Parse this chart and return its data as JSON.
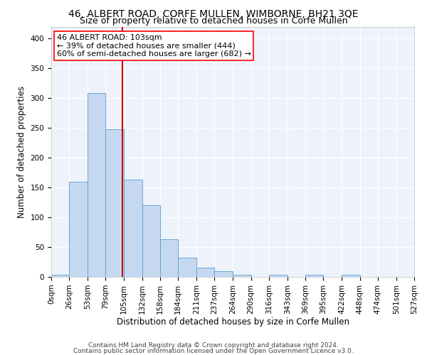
{
  "title": "46, ALBERT ROAD, CORFE MULLEN, WIMBORNE, BH21 3QE",
  "subtitle": "Size of property relative to detached houses in Corfe Mullen",
  "xlabel": "Distribution of detached houses by size in Corfe Mullen",
  "ylabel": "Number of detached properties",
  "footnote1": "Contains HM Land Registry data © Crown copyright and database right 2024.",
  "footnote2": "Contains public sector information licensed under the Open Government Licence v3.0.",
  "annotation_line1": "46 ALBERT ROAD: 103sqm",
  "annotation_line2": "← 39% of detached houses are smaller (444)",
  "annotation_line3": "60% of semi-detached houses are larger (682) →",
  "bar_color": "#c5d8f0",
  "bar_edge_color": "#5a9fd4",
  "vline_color": "#cc0000",
  "vline_x": 103,
  "bin_edges": [
    0,
    26,
    53,
    79,
    105,
    132,
    158,
    184,
    211,
    237,
    264,
    290,
    316,
    343,
    369,
    395,
    422,
    448,
    474,
    501,
    527
  ],
  "bar_heights": [
    3,
    160,
    308,
    248,
    163,
    120,
    63,
    32,
    15,
    9,
    4,
    0,
    3,
    0,
    4,
    0,
    4,
    0,
    0,
    0
  ],
  "ylim": [
    0,
    420
  ],
  "yticks": [
    0,
    50,
    100,
    150,
    200,
    250,
    300,
    350,
    400
  ],
  "bg_color": "#eef2fa",
  "grid_color": "#ffffff",
  "title_fontsize": 10,
  "subtitle_fontsize": 9,
  "label_fontsize": 8.5,
  "tick_fontsize": 7.5,
  "annotation_fontsize": 8,
  "footnote_fontsize": 6.5
}
